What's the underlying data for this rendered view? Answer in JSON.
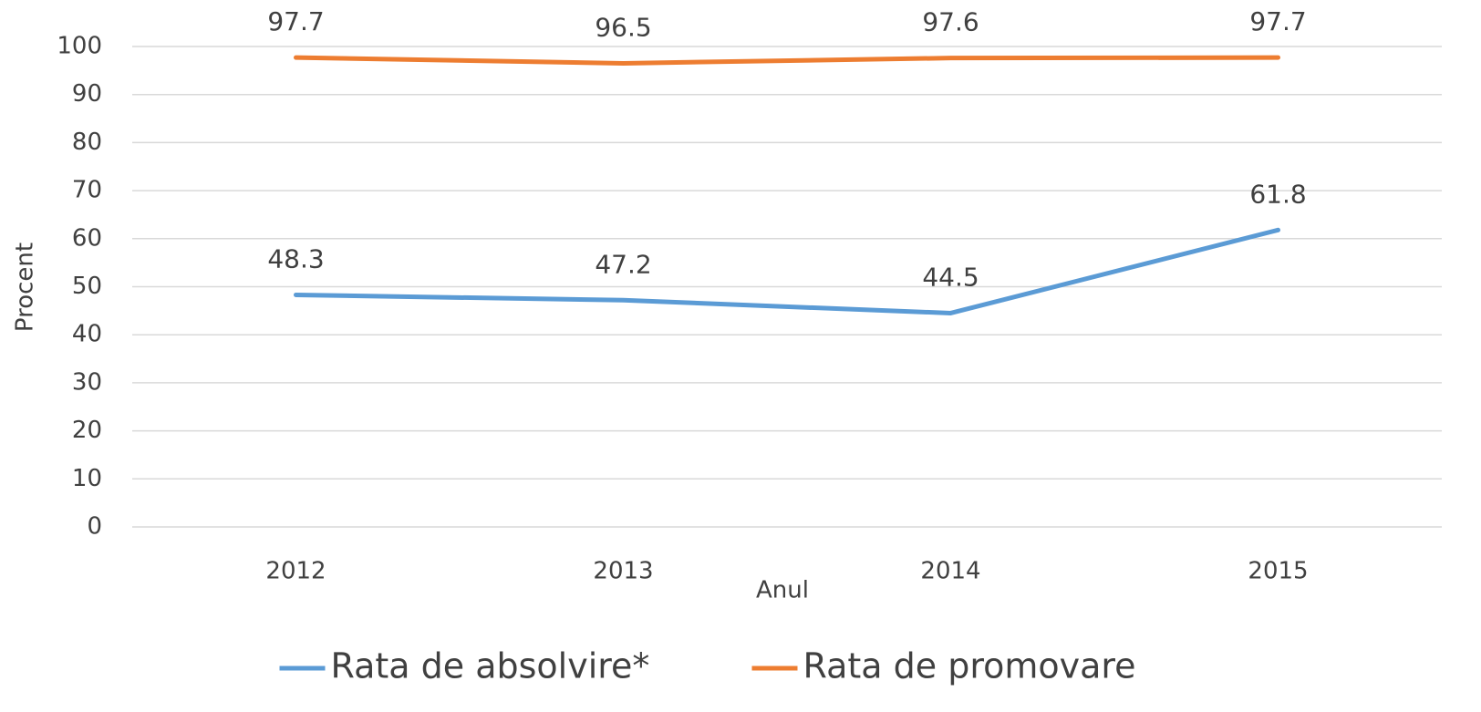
{
  "chart_data": {
    "type": "line",
    "categories": [
      "2012",
      "2013",
      "2014",
      "2015"
    ],
    "series": [
      {
        "name": "Rata de absolvire*",
        "color": "#5b9bd5",
        "values": [
          48.3,
          47.2,
          44.5,
          61.8
        ]
      },
      {
        "name": "Rata de promovare",
        "color": "#ed7d31",
        "values": [
          97.7,
          96.5,
          97.6,
          97.7
        ]
      }
    ],
    "xlabel": "Anul",
    "ylabel": "Procent",
    "ylim": [
      0,
      100
    ],
    "yticks": [
      0,
      10,
      20,
      30,
      40,
      50,
      60,
      70,
      80,
      90,
      100
    ],
    "grid": true,
    "legend": "bottom",
    "data_labels": true
  }
}
